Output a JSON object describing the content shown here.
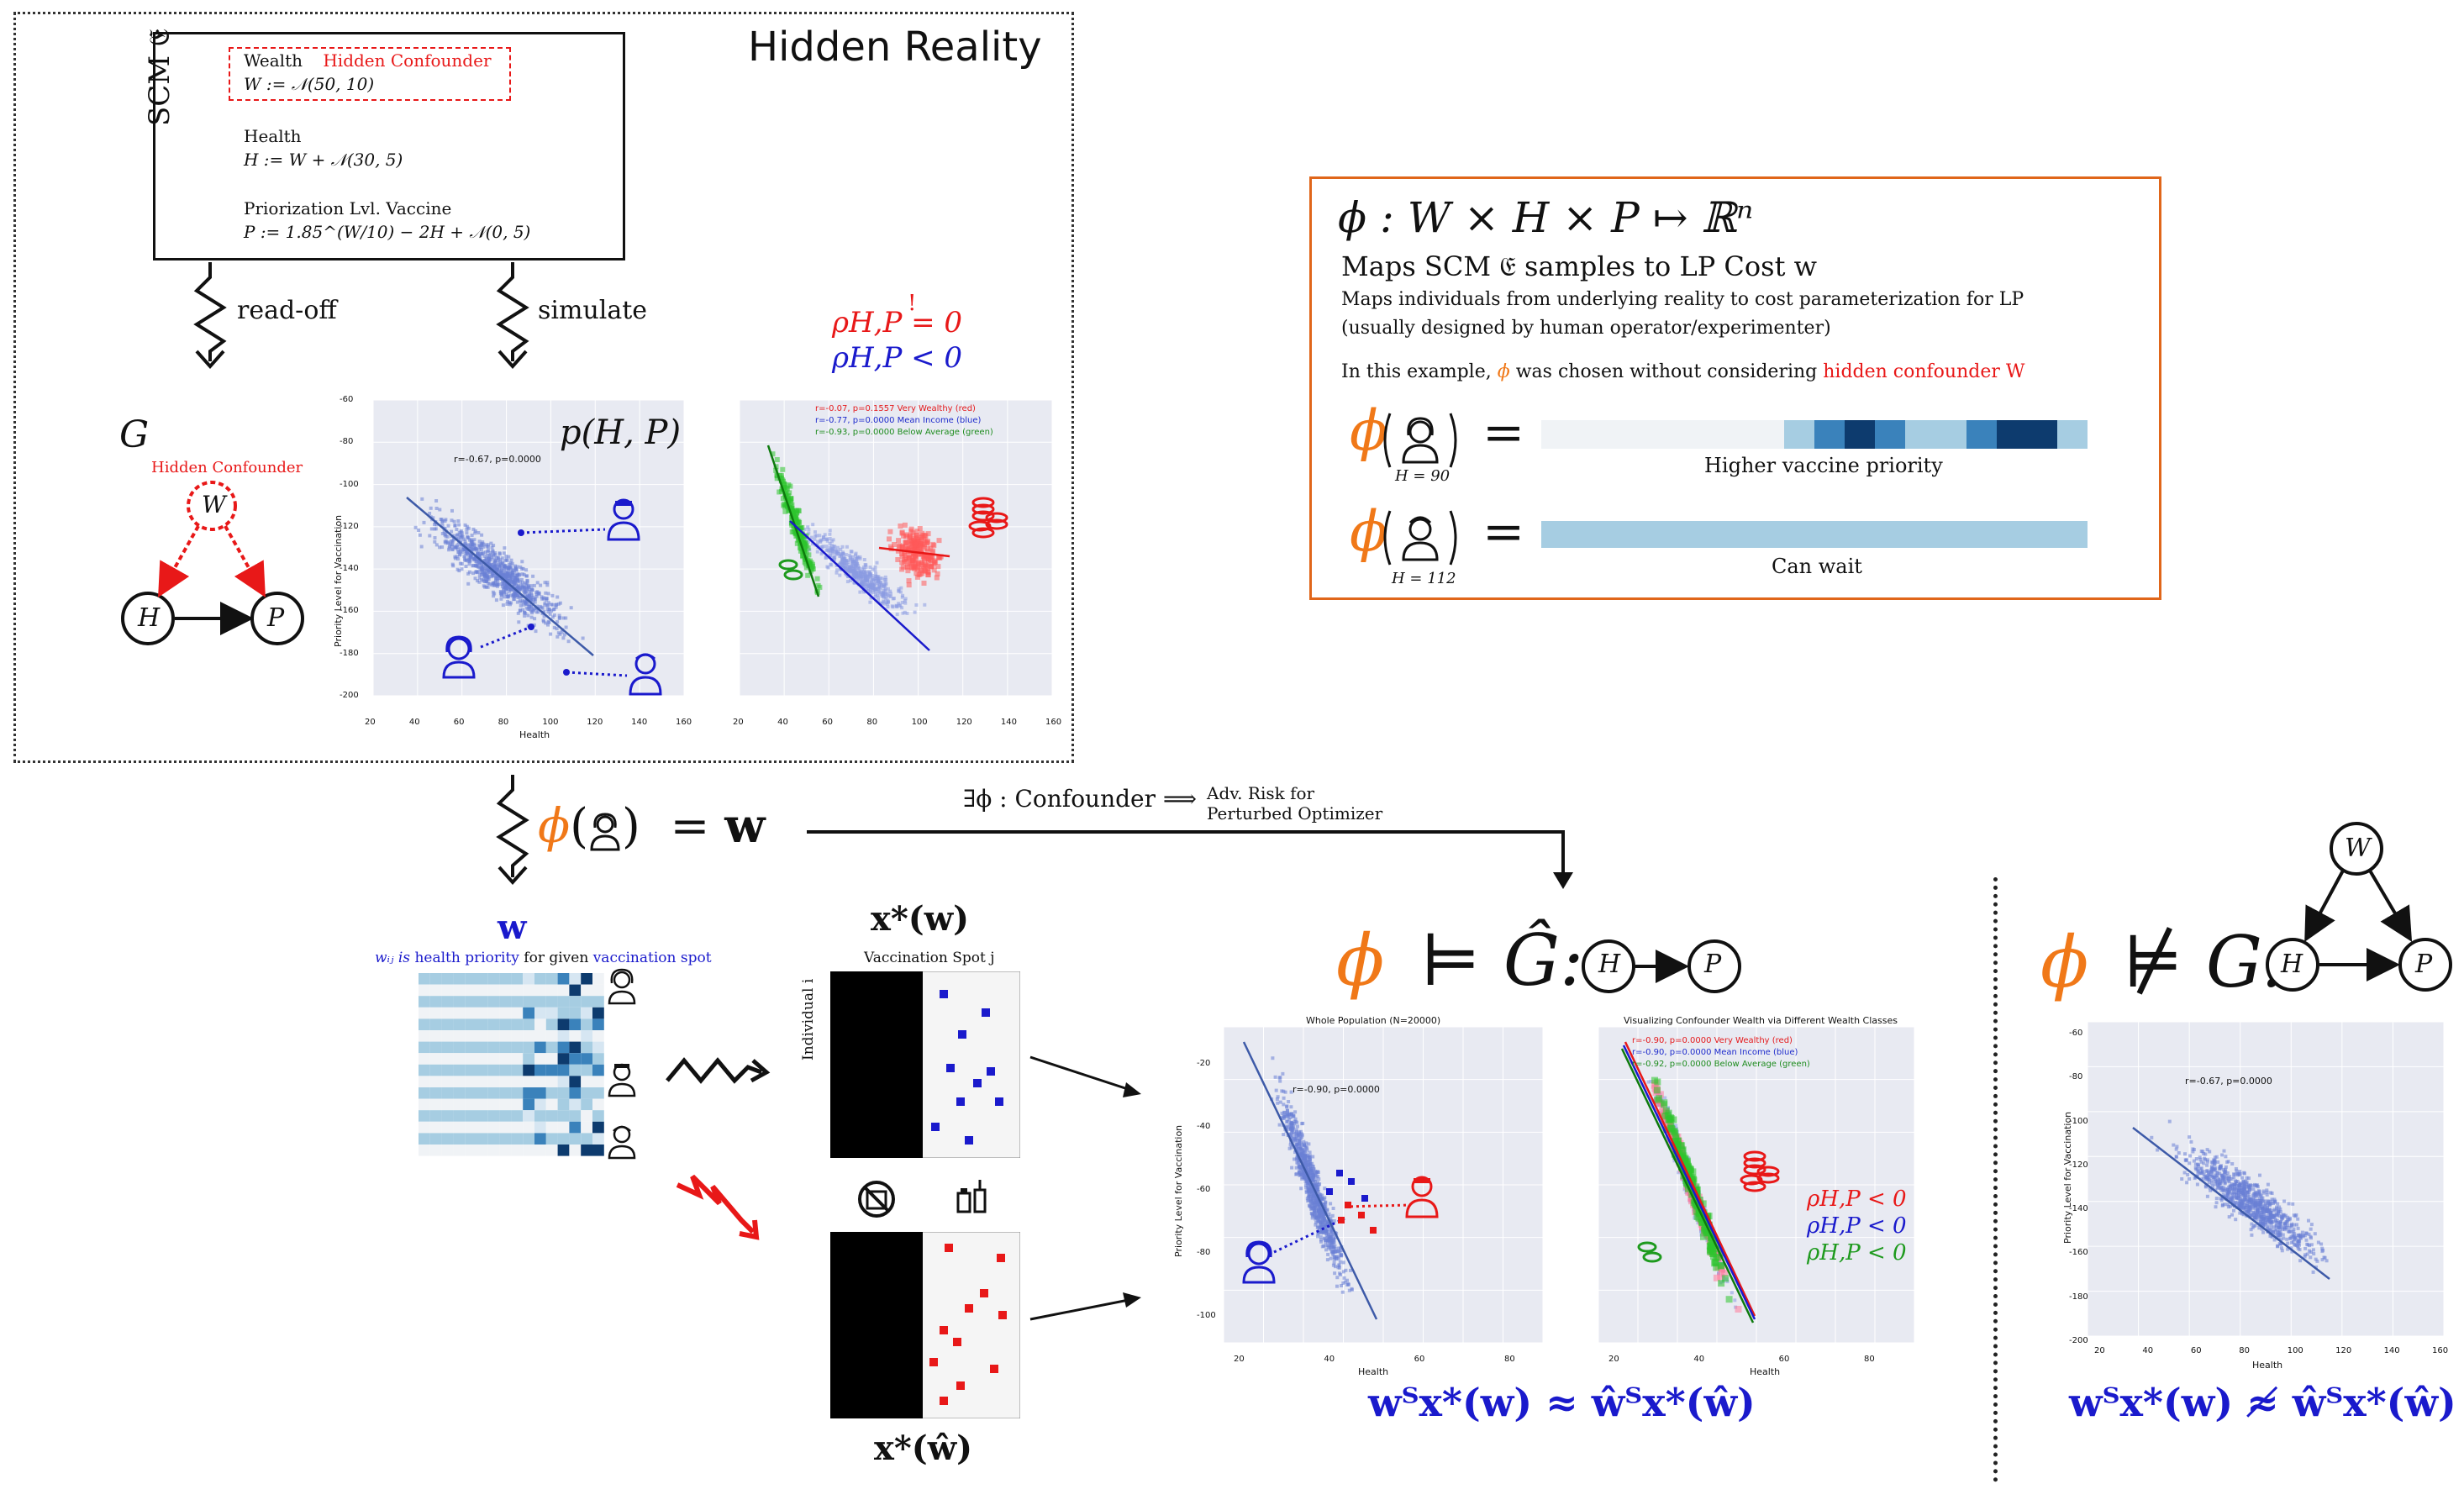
{
  "hidden_reality": {
    "title": "Hidden Reality",
    "scm_label": "SCM 𝔈",
    "wealth_label": "Wealth",
    "hidden_confounder_label": "Hidden Confounder",
    "wealth_eq": "W := 𝒩(50, 10)",
    "health_label": "Health",
    "health_eq": "H := W + 𝒩(30, 5)",
    "priority_label": "Priorization Lvl. Vaccine",
    "priority_eq": "P := 1.85^(W/10) − 2H + 𝒩(0, 5)",
    "read_off": "read-off",
    "simulate": "simulate",
    "graph_g": "G",
    "graph_hidden_confounder": "Hidden Confounder",
    "node_w": "W",
    "node_h": "H",
    "node_p": "P",
    "rho_top": "ρH,P = 0",
    "rho_top_bang": "!",
    "rho_bottom": "ρH,P < 0"
  },
  "plot_p": {
    "title": "p(H, P)",
    "stat": "r=-0.67, p=0.0000",
    "ylabel": "Priority Level for Vaccination",
    "xlabel": "Health",
    "xticks": [
      "20",
      "40",
      "60",
      "80",
      "100",
      "120",
      "140",
      "160"
    ],
    "yticks": [
      "-60",
      "-80",
      "-100",
      "-120",
      "-140",
      "-160",
      "-180",
      "-200"
    ]
  },
  "plot_groups": {
    "legend": [
      {
        "text": "r=-0.07, p=0.1557 Very Wealthy (red)",
        "color": "#e41a1c"
      },
      {
        "text": "r=-0.77, p=0.0000 Mean Income (blue)",
        "color": "#1f2ccc"
      },
      {
        "text": "r=-0.93, p=0.0000 Below Average (green)",
        "color": "#1e8c1e"
      }
    ],
    "xticks": [
      "20",
      "40",
      "60",
      "80",
      "100",
      "120",
      "140",
      "160"
    ]
  },
  "phi_box": {
    "formula": "ϕ : W × H × P ↦ ℝⁿ",
    "subtitle": "Maps SCM 𝔈 samples to LP Cost w",
    "desc1": "Maps individuals from underlying reality to cost parameterization for LP",
    "desc2": "(usually designed by human operator/experimenter)",
    "example_prefix": "In this example,",
    "example_phi": "ϕ",
    "example_mid": "was chosen without considering",
    "example_red": "hidden confounder W",
    "row1_caption": "H = 90",
    "row1_label": "Higher vaccine priority",
    "row2_caption": "H = 112",
    "row2_label": "Can wait",
    "row1_cells": [
      "#f0f3f6",
      "#f0f3f6",
      "#f0f3f6",
      "#f0f3f6",
      "#f0f3f6",
      "#f0f3f6",
      "#f0f3f6",
      "#f0f3f6",
      "#a6cde2",
      "#3a82bb",
      "#0d3b6e",
      "#3a82bb",
      "#a6cde2",
      "#a6cde2",
      "#3a82bb",
      "#0d3b6e",
      "#0d3b6e",
      "#a6cde2"
    ],
    "row2_cell": "#a6cde2"
  },
  "middle": {
    "phi_eq": "ϕ(👩) = w",
    "exists_text": "∃ϕ : Confounder ⟹",
    "adv_risk": "Adv. Risk for",
    "perturbed": "Perturbed Optimizer",
    "w_label": "w",
    "w_desc_prefix": "wᵢⱼ is",
    "w_desc_health": "health priority",
    "w_desc_mid": "for given",
    "w_desc_spot": "vaccination spot",
    "xw_label": "x*(w)",
    "vacc_spot": "Vaccination Spot j",
    "individual": "Individual i",
    "xwhat_label": "x*(ŵ)"
  },
  "ghat": {
    "phi": "ϕ",
    "models": "⊨",
    "g": "Ĝ:",
    "node_h": "H",
    "node_p": "P",
    "plot1_title": "Whole Population (N=20000)",
    "plot1_stat": "r=-0.90, p=0.0000",
    "plot1_ylabel": "Priority Level for Vaccination",
    "plot1_xlabel": "Health",
    "plot1_xticks": [
      "20",
      "40",
      "60",
      "80"
    ],
    "plot1_yticks": [
      "-20",
      "-40",
      "-60",
      "-80",
      "-100"
    ],
    "plot2_title": "Visualizing Confounder Wealth via Different Wealth Classes",
    "plot2_legend": [
      {
        "text": "r=-0.90, p=0.0000 Very Wealthy (red)",
        "color": "#e41a1c"
      },
      {
        "text": "r=-0.90, p=0.0000 Mean Income (blue)",
        "color": "#1f2ccc"
      },
      {
        "text": "r=-0.92, p=0.0000 Below Average (green)",
        "color": "#1e8c1e"
      }
    ],
    "plot2_xlabel": "Health",
    "plot2_xticks": [
      "20",
      "40",
      "60",
      "80"
    ],
    "rho_red": "ρH,P < 0",
    "rho_blue": "ρH,P < 0",
    "rho_green": "ρH,P < 0",
    "approx_eq": "wᵀx*(w) ≈ ŵᵀx*(ŵ)"
  },
  "right": {
    "phi": "ϕ",
    "not_models": "⊭",
    "g": "G:",
    "node_w": "W",
    "node_h": "H",
    "node_p": "P",
    "stat": "r=-0.67, p=0.0000",
    "ylabel": "Priority Level for Vaccination",
    "xlabel": "Health",
    "xticks": [
      "20",
      "40",
      "60",
      "80",
      "100",
      "120",
      "140",
      "160"
    ],
    "yticks": [
      "-60",
      "-80",
      "-100",
      "-120",
      "-140",
      "-160",
      "-180",
      "-200"
    ],
    "not_approx_eq": "wᵀx*(w) ≉ ŵᵀx*(ŵ)"
  },
  "colors": {
    "orange": "#f07818",
    "red": "#e81818",
    "blue": "#1a1acc",
    "green": "#1e9a1e",
    "plot_bg": "#e8eaf2",
    "scatter": "#6a7fd6",
    "heat_light": "#a6cde2",
    "heat_mid": "#3a82bb",
    "heat_dark": "#0d3b6e"
  }
}
